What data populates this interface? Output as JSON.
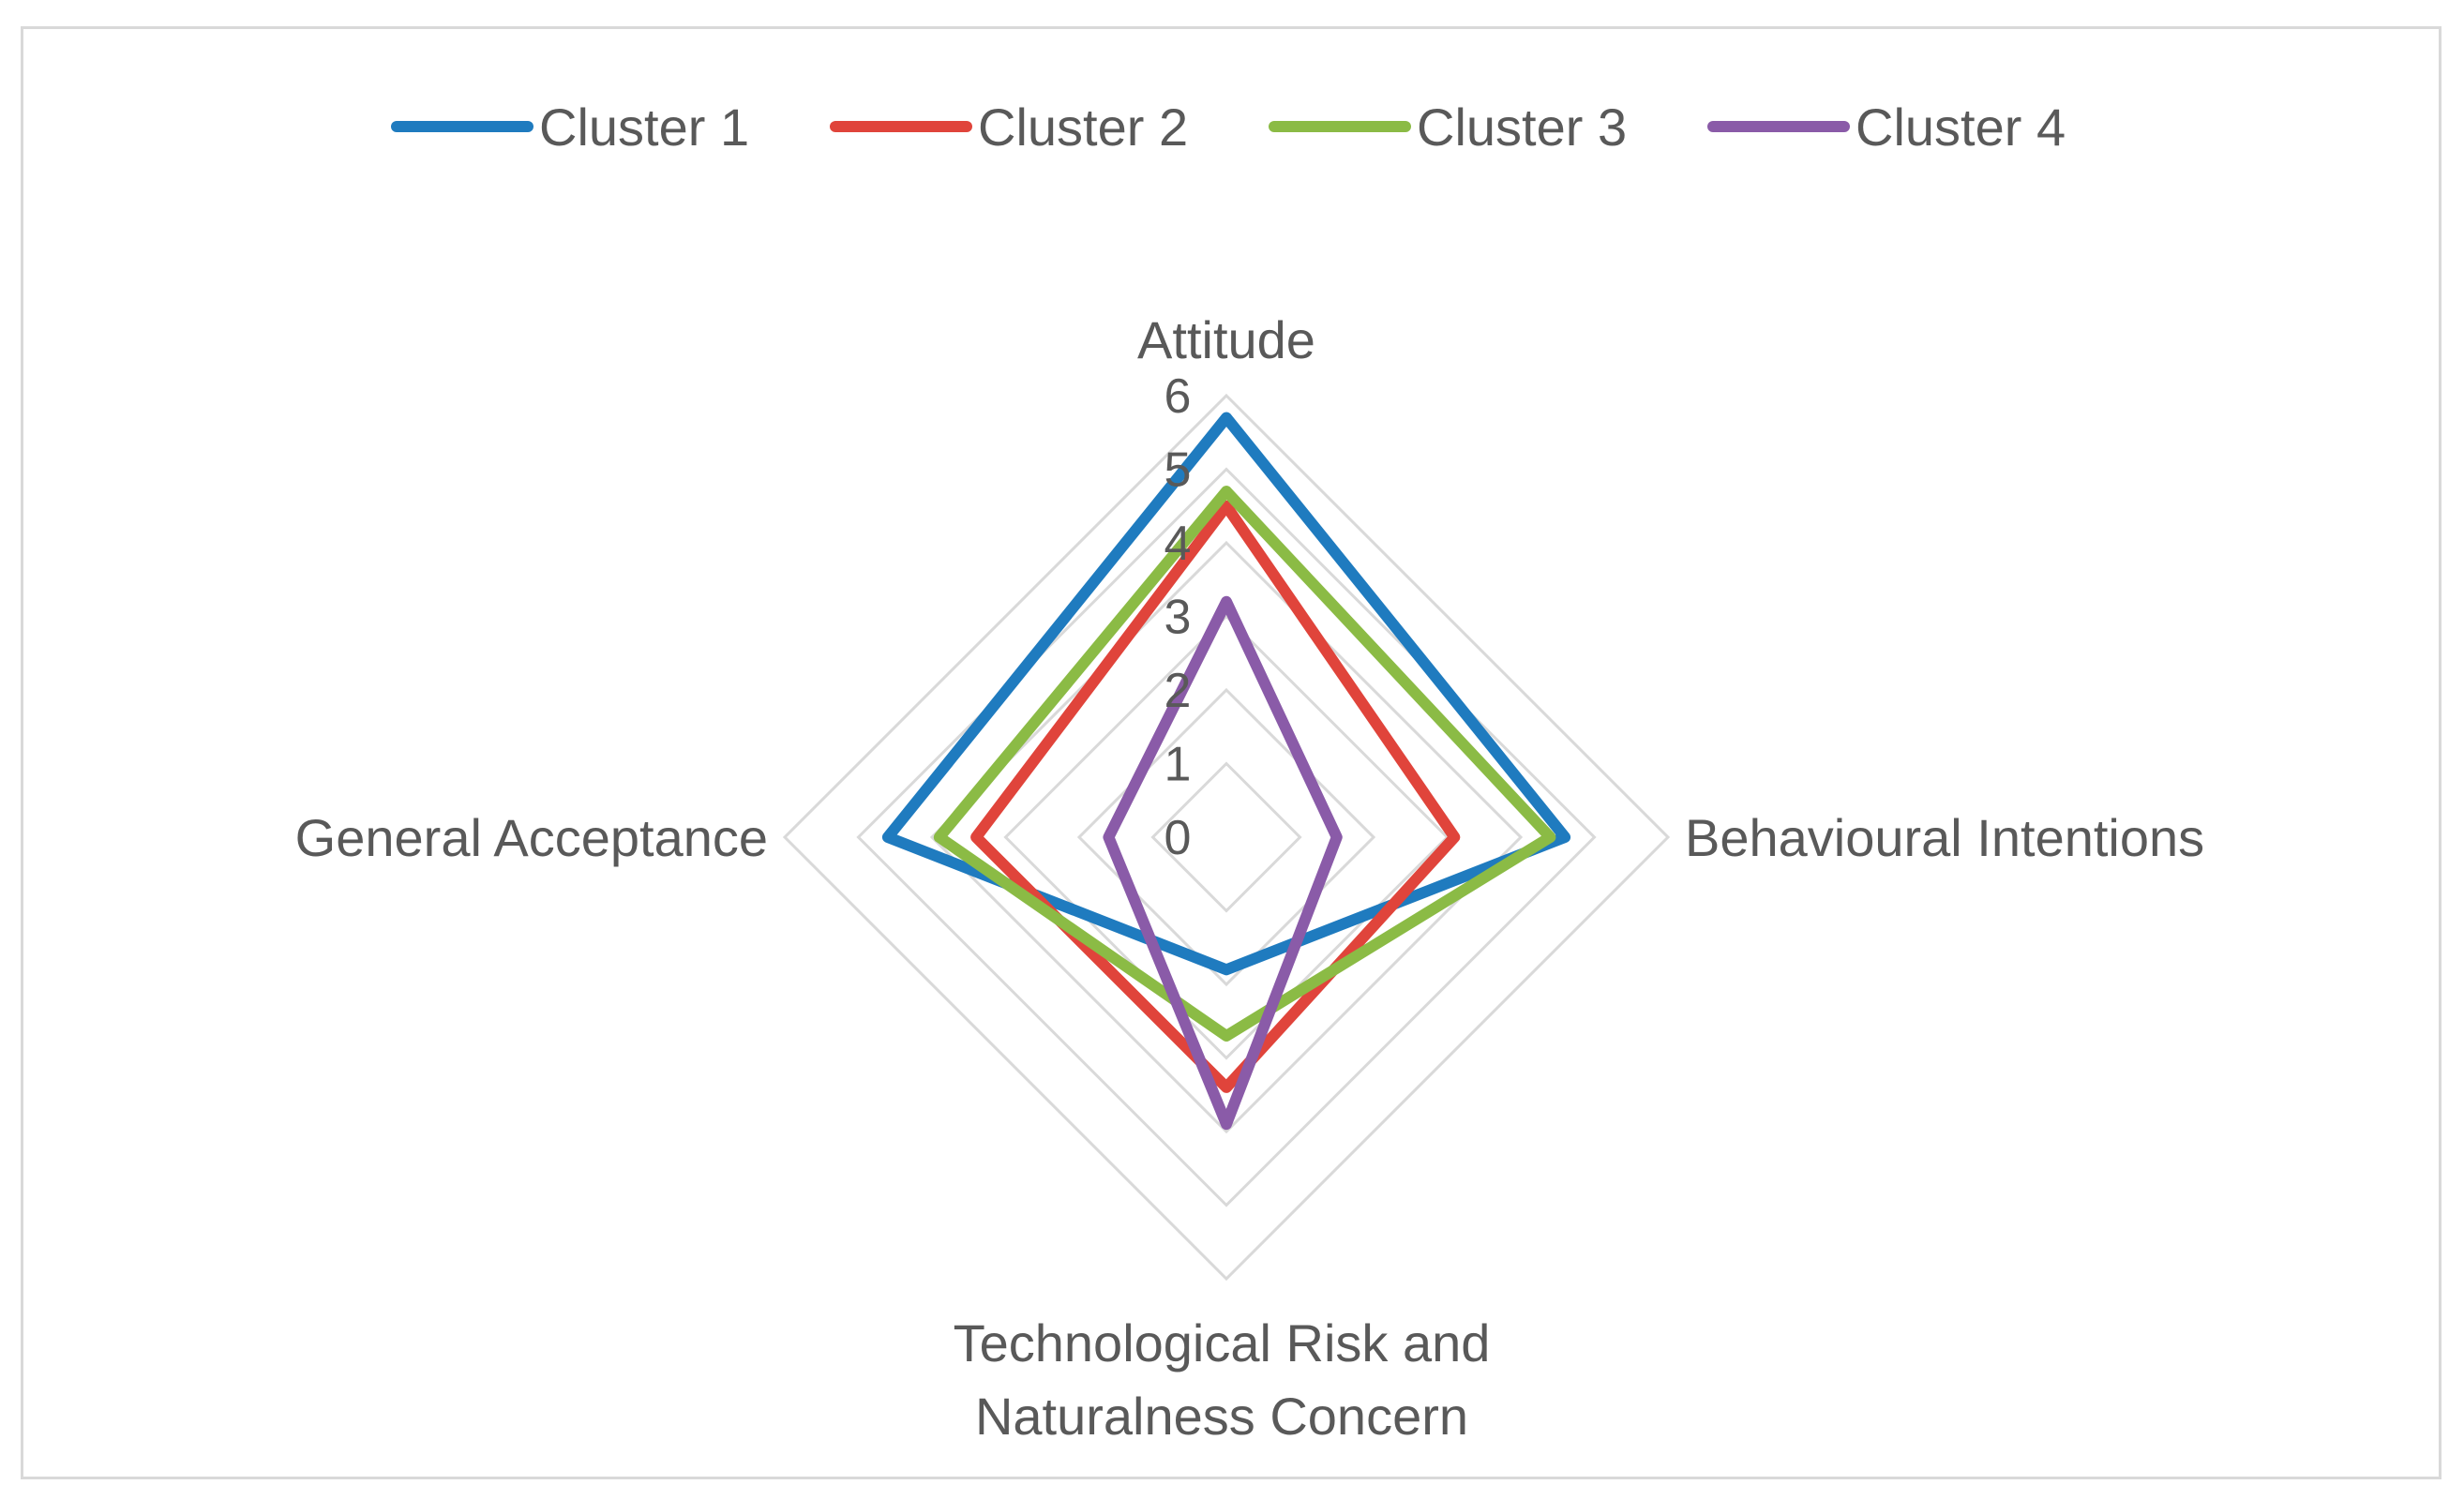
{
  "chart_data": {
    "type": "radar",
    "axes": [
      "Attitude",
      "Behavioural Intentions",
      "Technological Risk and Naturalness Concern",
      "General Acceptance"
    ],
    "axis_label_lines": [
      [
        "Attitude"
      ],
      [
        "Behavioural Intentions"
      ],
      [
        "Technological Risk and",
        "Naturalness Concern"
      ],
      [
        "General Acceptance"
      ]
    ],
    "ticks": [
      "0",
      "1",
      "2",
      "3",
      "4",
      "5",
      "6"
    ],
    "range": [
      0,
      6
    ],
    "gridlines": true,
    "legend_position": "top",
    "series": [
      {
        "name": "Cluster 1",
        "color": "#1f7bbf",
        "values": [
          5.7,
          4.6,
          1.8,
          4.6
        ]
      },
      {
        "name": "Cluster 2",
        "color": "#e0443b",
        "values": [
          4.5,
          3.1,
          3.4,
          3.4
        ]
      },
      {
        "name": "Cluster 3",
        "color": "#8bbb45",
        "values": [
          4.7,
          4.4,
          2.7,
          3.9
        ]
      },
      {
        "name": "Cluster 4",
        "color": "#8a5ba8",
        "values": [
          3.2,
          1.5,
          3.9,
          1.6
        ]
      }
    ]
  }
}
